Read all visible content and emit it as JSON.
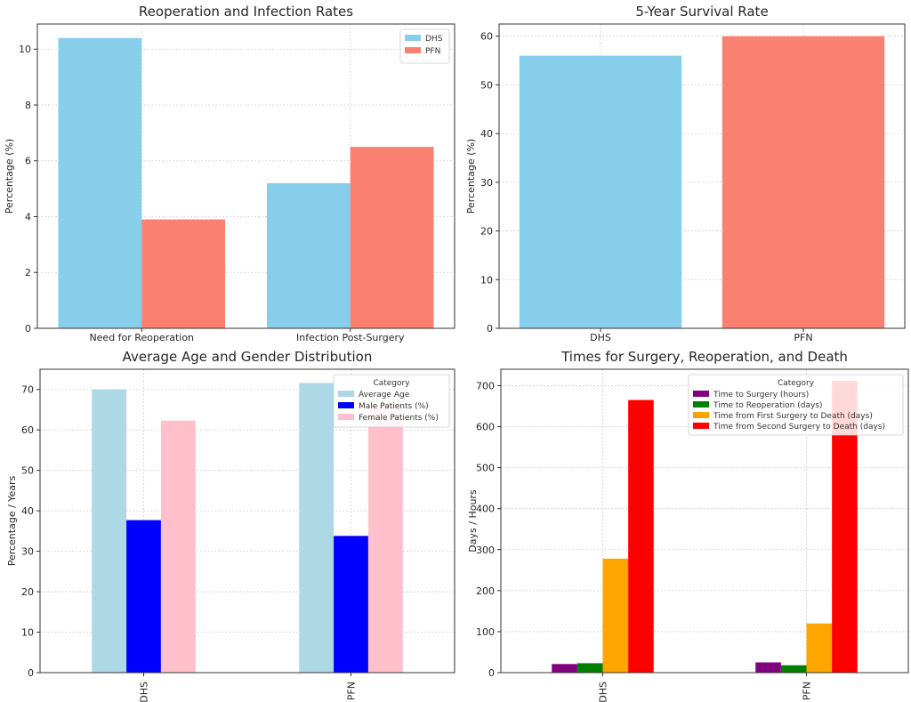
{
  "chart_data": [
    {
      "type": "bar",
      "title": "Reoperation and Infection Rates",
      "xlabel": "",
      "ylabel": "Percentage (%)",
      "ylim": [
        0,
        10.9
      ],
      "yticks": [
        0,
        2,
        4,
        6,
        8,
        10
      ],
      "grid": true,
      "categories": [
        "Need for Reoperation",
        "Infection Post-Surgery"
      ],
      "series": [
        {
          "name": "DHS",
          "color": "#87CEEB",
          "values": [
            10.4,
            5.2
          ]
        },
        {
          "name": "PFN",
          "color": "#FA8072",
          "values": [
            3.9,
            6.5
          ]
        }
      ],
      "legend": {
        "title": "",
        "placement": "top-right"
      }
    },
    {
      "type": "bar",
      "title": "5-Year Survival Rate",
      "xlabel": "",
      "ylabel": "Percentage (%)",
      "ylim": [
        0,
        62.5
      ],
      "yticks": [
        0,
        10,
        20,
        30,
        40,
        50,
        60
      ],
      "grid": true,
      "categories": [
        "DHS",
        "PFN"
      ],
      "series": [
        {
          "colors": [
            "#87CEEB",
            "#FA8072"
          ],
          "values": [
            56,
            60
          ]
        }
      ]
    },
    {
      "type": "bar",
      "title": "Average Age and Gender Distribution",
      "xlabel": "",
      "ylabel": "Percentage / Years",
      "ylim": [
        0,
        75
      ],
      "yticks": [
        0,
        10,
        20,
        30,
        40,
        50,
        60,
        70
      ],
      "grid": true,
      "rotated_xticks": true,
      "categories": [
        "DHS",
        "PFN"
      ],
      "series": [
        {
          "name": "Average Age",
          "color": "#ADD8E6",
          "values": [
            70,
            71.6
          ]
        },
        {
          "name": "Male Patients (%)",
          "color": "#0000FF",
          "values": [
            37.7,
            33.8
          ]
        },
        {
          "name": "Female Patients (%)",
          "color": "#FFC0CB",
          "values": [
            62.3,
            66.2
          ]
        }
      ],
      "legend": {
        "title": "Category",
        "placement": "top-right"
      }
    },
    {
      "type": "bar",
      "title": "Times for Surgery, Reoperation, and Death",
      "xlabel": "",
      "ylabel": "Days / Hours",
      "ylim": [
        0,
        740
      ],
      "yticks": [
        0,
        100,
        200,
        300,
        400,
        500,
        600,
        700
      ],
      "grid": true,
      "rotated_xticks": true,
      "categories": [
        "DHS",
        "PFN"
      ],
      "series": [
        {
          "name": "Time to Surgery (hours)",
          "color": "#800080",
          "values": [
            21,
            25
          ]
        },
        {
          "name": "Time to Reoperation (days)",
          "color": "#008000",
          "values": [
            23,
            18
          ]
        },
        {
          "name": "Time from First Surgery to Death (days)",
          "color": "#FFA500",
          "values": [
            278,
            120
          ]
        },
        {
          "name": "Time from Second Surgery to Death (days)",
          "color": "#FF0000",
          "values": [
            665,
            712
          ]
        }
      ],
      "legend": {
        "title": "Category",
        "placement": "top-right"
      }
    }
  ]
}
